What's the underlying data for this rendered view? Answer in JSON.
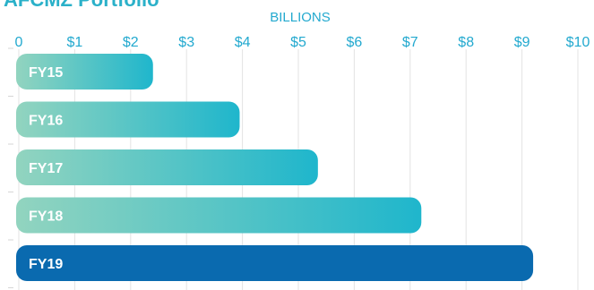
{
  "page": {
    "title": "AFCMZ Portfolio"
  },
  "chart_data": {
    "type": "bar",
    "orientation": "horizontal",
    "title": "AFCMZ Portfolio",
    "xlabel": "BILLIONS",
    "ylabel": "",
    "categories": [
      "FY15",
      "FY16",
      "FY17",
      "FY18",
      "FY19"
    ],
    "values": [
      2.4,
      3.95,
      5.35,
      7.2,
      9.2
    ],
    "xlim": [
      0,
      10
    ],
    "x_ticks": [
      "0",
      "$1",
      "$2",
      "$3",
      "$4",
      "$5",
      "$6",
      "$7",
      "$8",
      "$9",
      "$10"
    ],
    "grid": "vertical",
    "legend": "none",
    "colors": {
      "gradient_start": "#92d4bf",
      "gradient_end": "#1fb6cc",
      "highlight": "#0a6aaf",
      "axis_text": "#23a9cf",
      "grid": "#e3e3e3",
      "label_text": "#ffffff"
    },
    "highlight_category": "FY19"
  }
}
